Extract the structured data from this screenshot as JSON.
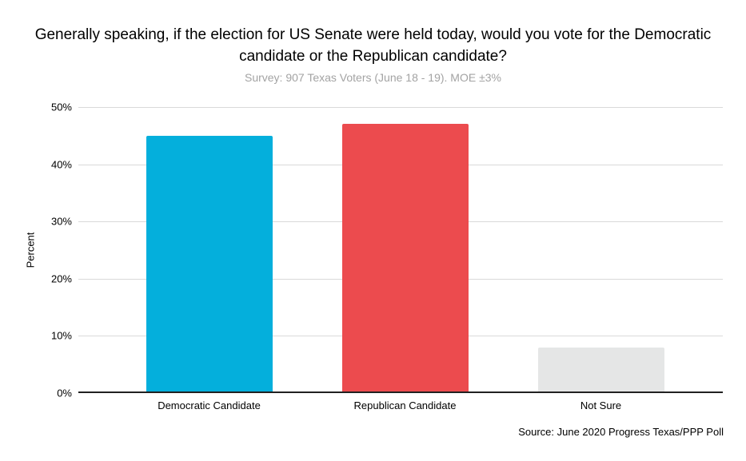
{
  "chart_data": {
    "type": "bar",
    "title": "Generally speaking, if the election for US Senate were held today, would you vote for the Democratic candidate or the Republican candidate?",
    "subtitle": "Survey: 907 Texas Voters (June 18 - 19). MOE ±3%",
    "categories": [
      "Democratic Candidate",
      "Republican Candidate",
      "Not Sure"
    ],
    "values": [
      45,
      47,
      8
    ],
    "bar_colors": [
      "#04afdc",
      "#ec4b4e",
      "#e5e6e6"
    ],
    "xlabel": "",
    "ylabel": "Percent",
    "ylim": [
      0,
      50
    ],
    "yticks": [
      0,
      10,
      20,
      30,
      40,
      50
    ],
    "ytick_suffix": "%",
    "grid": true,
    "legend_position": "none",
    "source": "Source: June 2020 Progress Texas/PPP Poll",
    "colors": {
      "background": "#ffffff",
      "gridline": "#d9d9d9",
      "axis_line": "#212121",
      "title_text": "#000000",
      "subtitle_text": "#a3a3a3",
      "tick_text": "#000000"
    }
  }
}
